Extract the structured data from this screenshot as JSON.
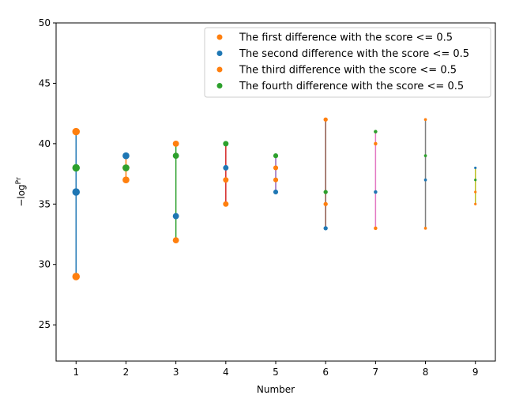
{
  "chart_data": {
    "type": "scatter",
    "xlabel": "Number",
    "ylabel": "−log",
    "ylabel_sup": "Pr",
    "xlim": [
      0.6,
      9.4
    ],
    "ylim": [
      22,
      50
    ],
    "xticks": [
      1,
      2,
      3,
      4,
      5,
      6,
      7,
      8,
      9
    ],
    "yticks": [
      25,
      30,
      35,
      40,
      45,
      50
    ],
    "grid": false,
    "legend_position": "top-right",
    "series": [
      {
        "name": "The first difference with the score <= 0.5",
        "color": "#ff7f0e",
        "points": [
          [
            1,
            41
          ],
          [
            2,
            38
          ],
          [
            3,
            40
          ],
          [
            4,
            35
          ],
          [
            5,
            38
          ],
          [
            6,
            42
          ],
          [
            7,
            40
          ],
          [
            8,
            33
          ],
          [
            9,
            36
          ]
        ]
      },
      {
        "name": "The second difference with the score <= 0.5",
        "color": "#1f77b4",
        "points": [
          [
            1,
            36
          ],
          [
            2,
            39
          ],
          [
            3,
            34
          ],
          [
            4,
            38
          ],
          [
            5,
            36
          ],
          [
            6,
            33
          ],
          [
            7,
            36
          ],
          [
            8,
            37
          ],
          [
            9,
            38
          ]
        ]
      },
      {
        "name": "The third difference with the score <= 0.5",
        "color": "#ff7f0e",
        "points": [
          [
            1,
            29
          ],
          [
            2,
            37
          ],
          [
            3,
            32
          ],
          [
            4,
            37
          ],
          [
            5,
            37
          ],
          [
            6,
            35
          ],
          [
            7,
            33
          ],
          [
            8,
            42
          ],
          [
            9,
            35
          ]
        ]
      },
      {
        "name": "The fourth difference with the score <= 0.5",
        "color": "#2ca02c",
        "points": [
          [
            1,
            38
          ],
          [
            2,
            38
          ],
          [
            3,
            39
          ],
          [
            4,
            40
          ],
          [
            5,
            39
          ],
          [
            6,
            36
          ],
          [
            7,
            41
          ],
          [
            8,
            39
          ],
          [
            9,
            37
          ]
        ]
      }
    ],
    "vlines": [
      {
        "x": 1,
        "ymin": 29,
        "ymax": 41,
        "color": "#1f77b4"
      },
      {
        "x": 2,
        "ymin": 37,
        "ymax": 39,
        "color": "#ff7f0e"
      },
      {
        "x": 3,
        "ymin": 32,
        "ymax": 40,
        "color": "#2ca02c"
      },
      {
        "x": 4,
        "ymin": 35,
        "ymax": 40,
        "color": "#d62728"
      },
      {
        "x": 5,
        "ymin": 36,
        "ymax": 39,
        "color": "#9467bd"
      },
      {
        "x": 6,
        "ymin": 33,
        "ymax": 42,
        "color": "#8c564b"
      },
      {
        "x": 7,
        "ymin": 33,
        "ymax": 41,
        "color": "#e377c2"
      },
      {
        "x": 8,
        "ymin": 33,
        "ymax": 42,
        "color": "#7f7f7f"
      },
      {
        "x": 9,
        "ymin": 35,
        "ymax": 38,
        "color": "#bcbd22"
      }
    ]
  }
}
